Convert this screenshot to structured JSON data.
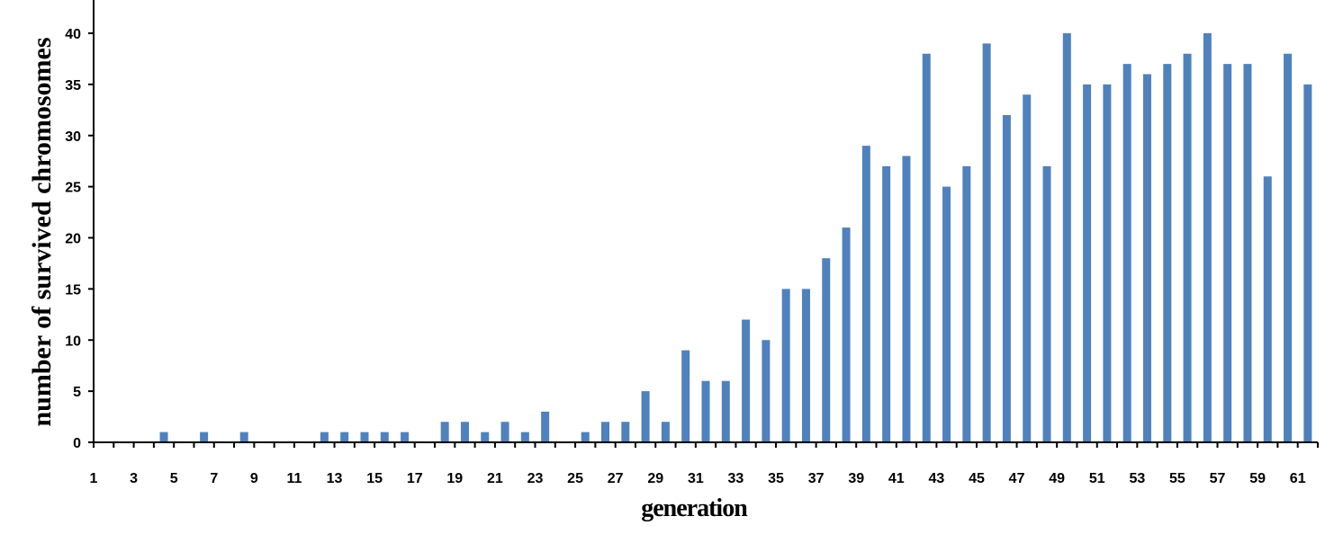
{
  "chart_data": {
    "type": "bar",
    "title": "",
    "xlabel": "generation",
    "ylabel": "number of survived chromosomes",
    "ylim": [
      0,
      40
    ],
    "yticks": [
      0,
      5,
      10,
      15,
      20,
      25,
      30,
      35,
      40
    ],
    "xtick_labels": [
      "1",
      "3",
      "5",
      "7",
      "9",
      "11",
      "13",
      "15",
      "17",
      "19",
      "21",
      "23",
      "25",
      "27",
      "29",
      "31",
      "33",
      "35",
      "37",
      "39",
      "41",
      "43",
      "45",
      "47",
      "49",
      "51",
      "53",
      "55",
      "57",
      "59",
      "61"
    ],
    "categories": [
      1,
      2,
      3,
      4,
      5,
      6,
      7,
      8,
      9,
      10,
      11,
      12,
      13,
      14,
      15,
      16,
      17,
      18,
      19,
      20,
      21,
      22,
      23,
      24,
      25,
      26,
      27,
      28,
      29,
      30,
      31,
      32,
      33,
      34,
      35,
      36,
      37,
      38,
      39,
      40,
      41,
      42,
      43,
      44,
      45,
      46,
      47,
      48,
      49,
      50,
      51,
      52,
      53,
      54,
      55,
      56,
      57,
      58,
      59,
      60,
      61
    ],
    "values": [
      0,
      0,
      0,
      1,
      0,
      1,
      0,
      1,
      0,
      0,
      0,
      1,
      1,
      1,
      1,
      1,
      0,
      2,
      2,
      1,
      2,
      1,
      3,
      0,
      1,
      2,
      2,
      5,
      2,
      9,
      6,
      6,
      12,
      10,
      15,
      15,
      18,
      21,
      29,
      27,
      28,
      38,
      25,
      27,
      39,
      32,
      34,
      27,
      40,
      35,
      35,
      37,
      36,
      37,
      38,
      40,
      37,
      37,
      26,
      38,
      35
    ],
    "bar_color": "#4f81bd",
    "grid": false,
    "legend": "none"
  }
}
